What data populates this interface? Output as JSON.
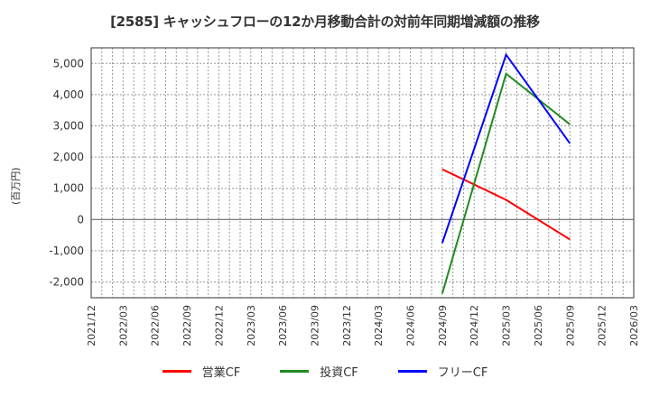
{
  "title": "[2585]  キャッシュフローの12か月移動合計の対前年同期増減額の推移",
  "y_axis_label": "(百万円)",
  "legend": [
    {
      "label": "営業CF",
      "color": "#ff0000"
    },
    {
      "label": "投資CF",
      "color": "#228b22"
    },
    {
      "label": "フリーCF",
      "color": "#0000ff"
    }
  ],
  "chart_data": {
    "type": "line",
    "title": "[2585]  キャッシュフローの12か月移動合計の対前年同期増減額の推移",
    "xlabel": "",
    "ylabel": "(百万円)",
    "ylim": [
      -2500,
      5500
    ],
    "yticks": [
      -2000,
      -1000,
      0,
      1000,
      2000,
      3000,
      4000,
      5000
    ],
    "ytick_labels": [
      "-2,000",
      "-1,000",
      "0",
      "1,000",
      "2,000",
      "3,000",
      "4,000",
      "5,000"
    ],
    "xticks": [
      "2021/12",
      "2022/03",
      "2022/06",
      "2022/09",
      "2022/12",
      "2023/03",
      "2023/06",
      "2023/09",
      "2023/12",
      "2024/03",
      "2024/06",
      "2024/09",
      "2024/12",
      "2025/03",
      "2025/06",
      "2025/09",
      "2025/12",
      "2026/03"
    ],
    "grid": true,
    "legend_position": "bottom",
    "x": [
      "2024/09",
      "2025/03",
      "2025/09"
    ],
    "series": [
      {
        "name": "営業CF",
        "color": "#ff0000",
        "values": [
          1610,
          630,
          -640
        ]
      },
      {
        "name": "投資CF",
        "color": "#228b22",
        "values": [
          -2370,
          4670,
          3050
        ]
      },
      {
        "name": "フリーCF",
        "color": "#0000ff",
        "values": [
          -750,
          5280,
          2440
        ]
      }
    ]
  }
}
